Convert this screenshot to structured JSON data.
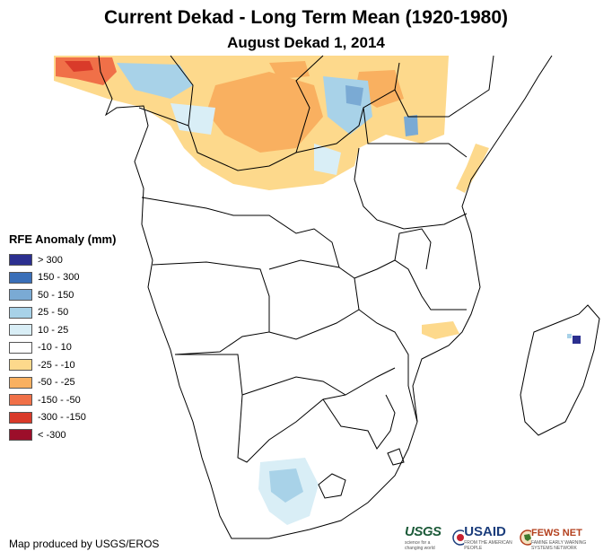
{
  "header": {
    "title": "Current Dekad - Long Term Mean (1920-1980)",
    "subtitle": "August Dekad 1, 2014"
  },
  "legend": {
    "title": "RFE Anomaly (mm)",
    "items": [
      {
        "label": "> 300",
        "color": "#2b2f8f"
      },
      {
        "label": "150 - 300",
        "color": "#3a6fb8"
      },
      {
        "label": "50 - 150",
        "color": "#7aaad4"
      },
      {
        "label": "25 - 50",
        "color": "#a8d2e8"
      },
      {
        "label": "10 - 25",
        "color": "#d9eef6"
      },
      {
        "label": "-10 - 10",
        "color": "#ffffff"
      },
      {
        "label": "-25 - -10",
        "color": "#fdd98c"
      },
      {
        "label": "-50 - -25",
        "color": "#f9b060"
      },
      {
        "label": "-150 - -50",
        "color": "#f07048"
      },
      {
        "label": "-300 - -150",
        "color": "#d93a2a"
      },
      {
        "label": "< -300",
        "color": "#9c0e2a"
      }
    ]
  },
  "footer": {
    "credit": "Map produced by USGS/EROS",
    "logos": {
      "usgs": "USGS",
      "usgs_tagline": "science for a changing world",
      "usaid": "USAID",
      "usaid_tagline": "FROM THE AMERICAN PEOPLE",
      "fews": "FEWS NET",
      "fews_tagline": "FAMINE EARLY WARNING SYSTEMS NETWORK"
    }
  }
}
